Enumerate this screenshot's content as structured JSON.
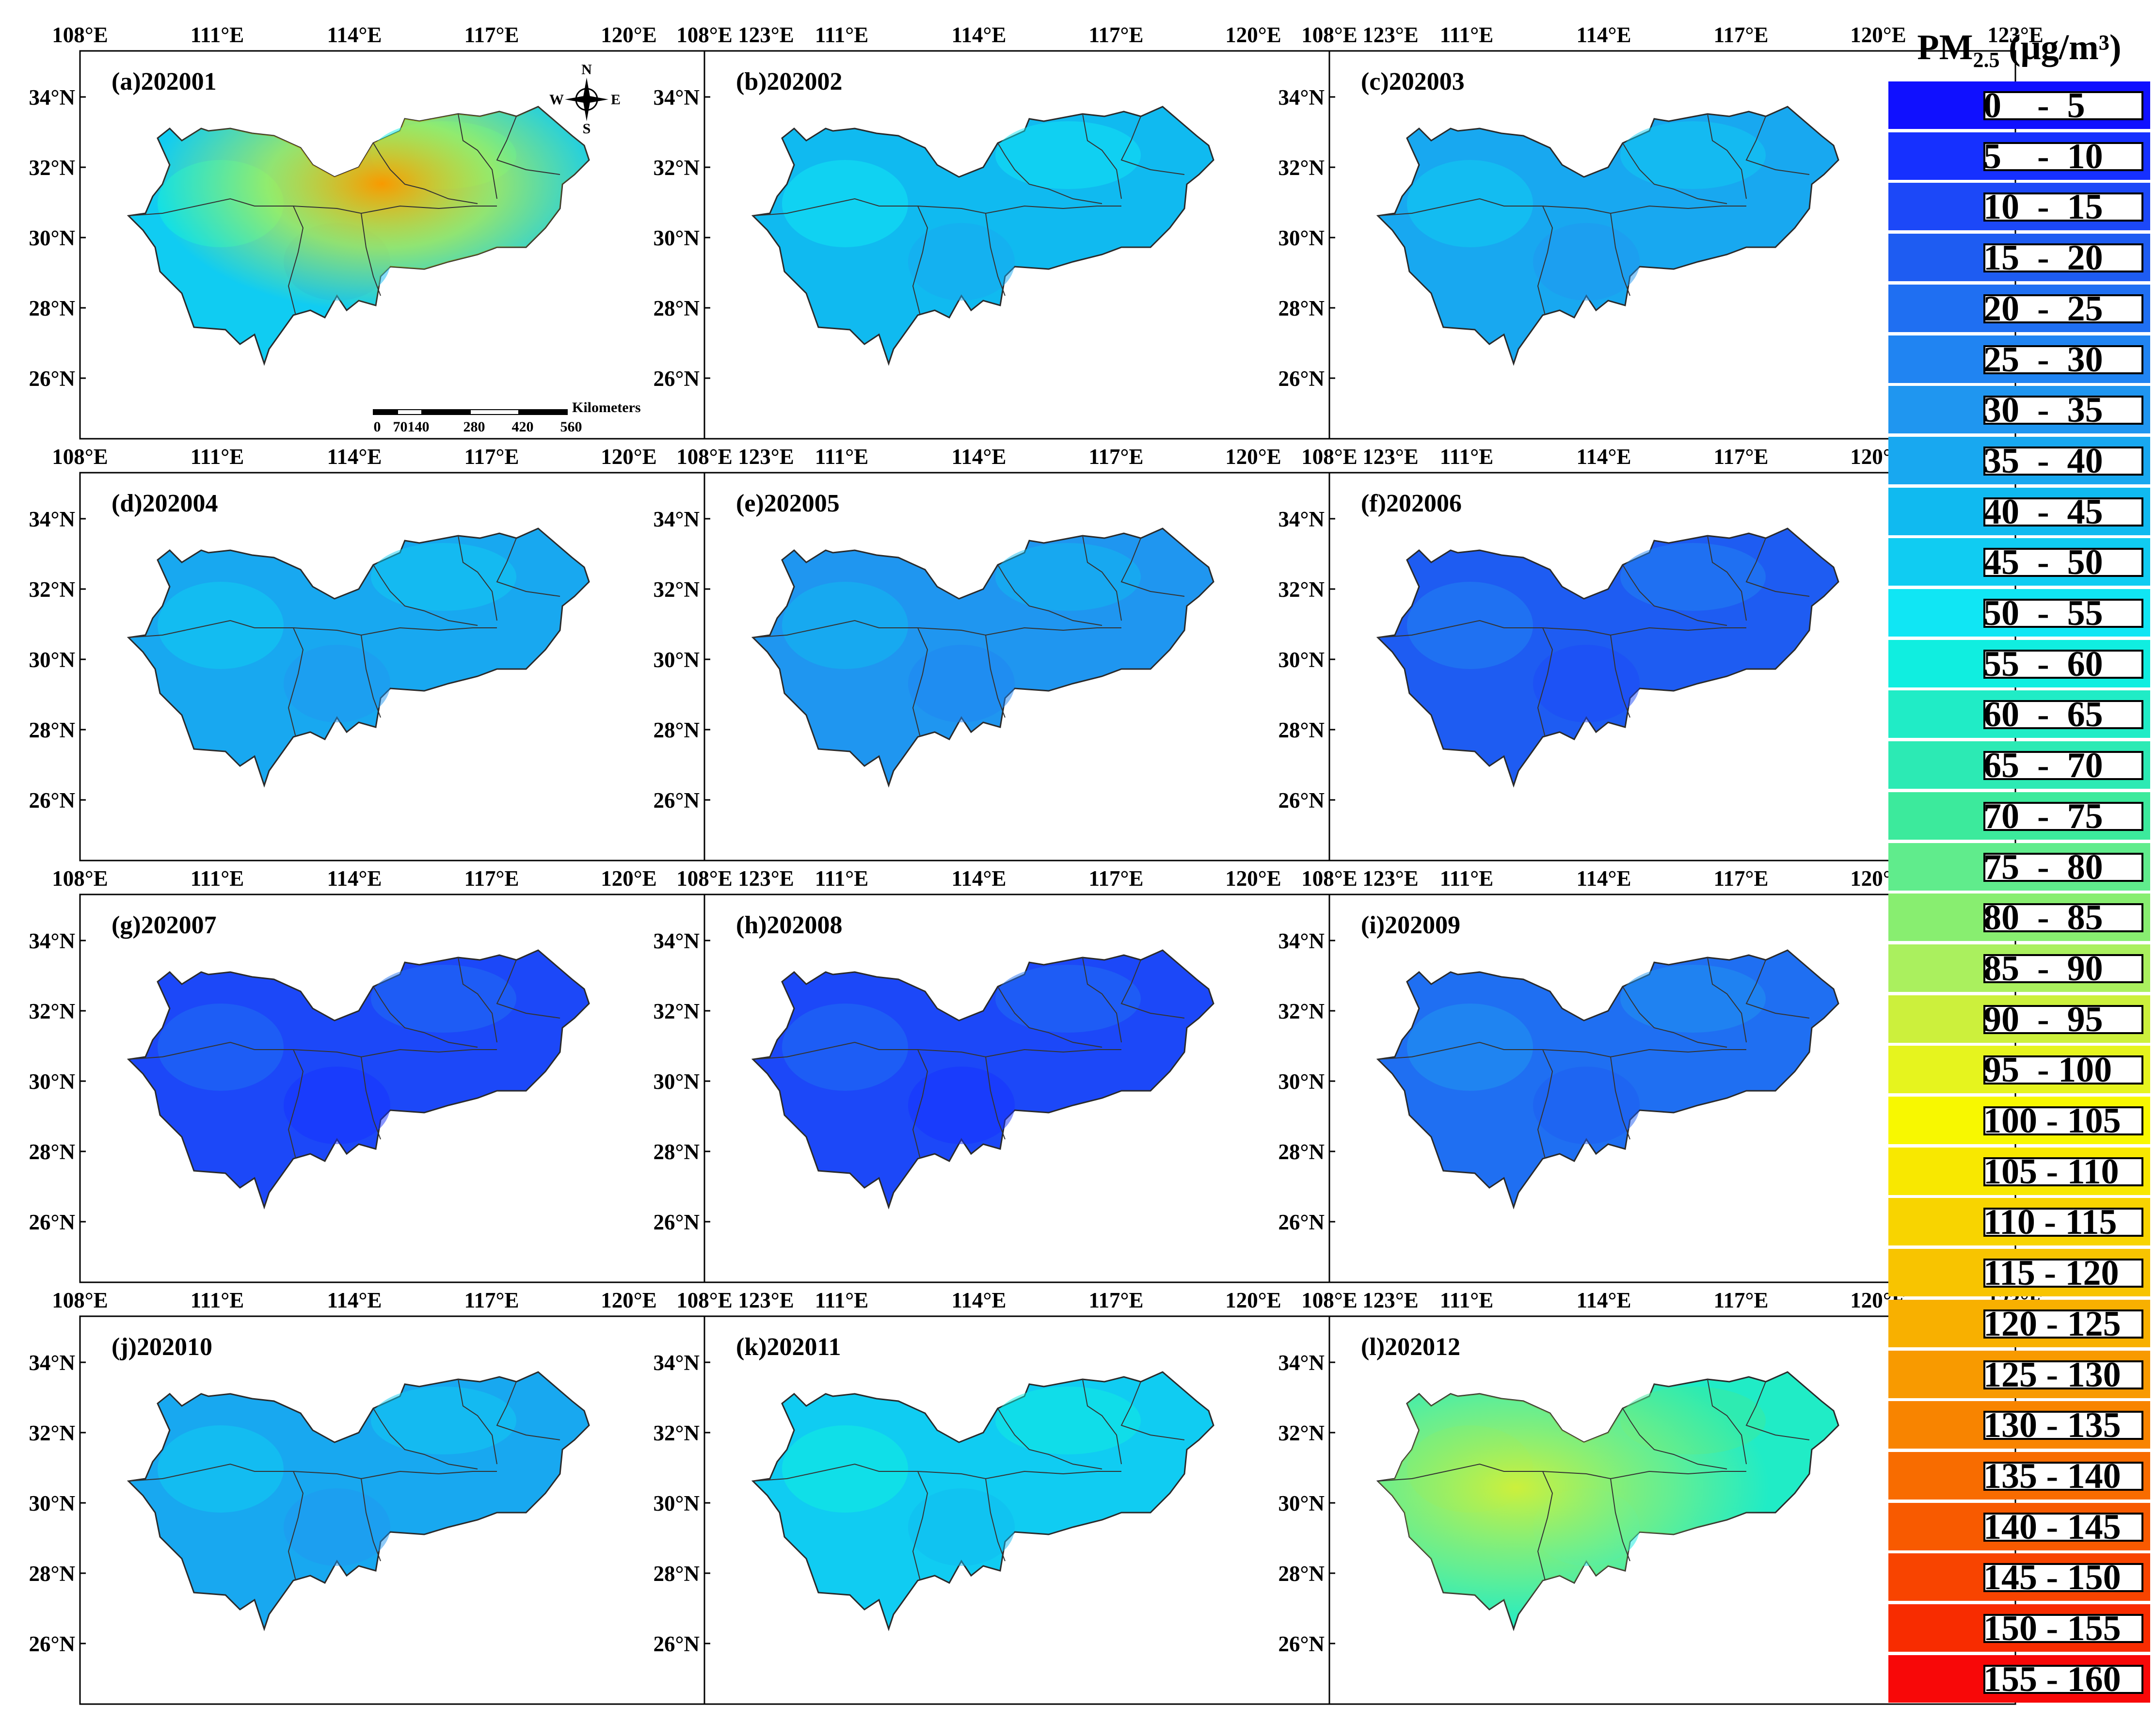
{
  "figure": {
    "lon_ticks": [
      "108°E",
      "111°E",
      "114°E",
      "117°E",
      "120°E",
      "123°E"
    ],
    "lat_ticks": [
      "34°N",
      "32°N",
      "30°N",
      "28°N",
      "26°N"
    ],
    "panels": [
      {
        "label": "(a)202001",
        "fill_index": 9,
        "hot": true
      },
      {
        "label": "(b)202002",
        "fill_index": 8,
        "hot": false
      },
      {
        "label": "(c)202003",
        "fill_index": 7,
        "hot": false
      },
      {
        "label": "(d)202004",
        "fill_index": 7,
        "hot": false
      },
      {
        "label": "(e)202005",
        "fill_index": 6,
        "hot": false
      },
      {
        "label": "(f)202006",
        "fill_index": 3,
        "hot": false
      },
      {
        "label": "(g)202007",
        "fill_index": 2,
        "hot": false
      },
      {
        "label": "(h)202008",
        "fill_index": 2,
        "hot": false
      },
      {
        "label": "(i)202009",
        "fill_index": 4,
        "hot": false
      },
      {
        "label": "(j)202010",
        "fill_index": 7,
        "hot": false
      },
      {
        "label": "(k)202011",
        "fill_index": 9,
        "hot": false
      },
      {
        "label": "(l)202012",
        "fill_index": 12,
        "hot": true
      }
    ],
    "north_arrow": {
      "n": "N",
      "s": "S",
      "e": "E",
      "w": "W"
    },
    "scale_bar": {
      "ticks": [
        "0",
        "70140",
        "280",
        "420",
        "560"
      ],
      "unit": "Kilometers"
    }
  },
  "legend": {
    "title_main": "PM",
    "title_sub": "2.5",
    "title_unit": " (μg/m³)",
    "items": [
      {
        "label": "0    -  5",
        "color": "#1010ff"
      },
      {
        "label": "5    -  10",
        "color": "#1630ff"
      },
      {
        "label": "10  -  15",
        "color": "#1c48f8"
      },
      {
        "label": "15  -  20",
        "color": "#1e5cf2"
      },
      {
        "label": "20  -  25",
        "color": "#1f6ff2"
      },
      {
        "label": "25  -  30",
        "color": "#2084f2"
      },
      {
        "label": "30  -  35",
        "color": "#1f96f0"
      },
      {
        "label": "35  -  40",
        "color": "#18a8f0"
      },
      {
        "label": "40  -  45",
        "color": "#10baf0"
      },
      {
        "label": "45  -  50",
        "color": "#10ccf2"
      },
      {
        "label": "50  -  55",
        "color": "#10e6f4"
      },
      {
        "label": "55  -  60",
        "color": "#10eee0"
      },
      {
        "label": "60  -  65",
        "color": "#20ecc6"
      },
      {
        "label": "65  -  70",
        "color": "#2ceab4"
      },
      {
        "label": "70  -  75",
        "color": "#3cea9c"
      },
      {
        "label": "75  -  80",
        "color": "#60ec8c"
      },
      {
        "label": "80  -  85",
        "color": "#88ee70"
      },
      {
        "label": "85  -  90",
        "color": "#aaf05e"
      },
      {
        "label": "90  -  95",
        "color": "#ccf03c"
      },
      {
        "label": "95  - 100",
        "color": "#e6f41e"
      },
      {
        "label": "100 - 105",
        "color": "#f8f800"
      },
      {
        "label": "105 - 110",
        "color": "#f8e800"
      },
      {
        "label": "110 - 115",
        "color": "#f8d400"
      },
      {
        "label": "115 - 120",
        "color": "#f8c400"
      },
      {
        "label": "120 - 125",
        "color": "#f8b000"
      },
      {
        "label": "125 - 130",
        "color": "#f89a00"
      },
      {
        "label": "130 - 135",
        "color": "#f88400"
      },
      {
        "label": "135 - 140",
        "color": "#f86c00"
      },
      {
        "label": "140 - 145",
        "color": "#f85a00"
      },
      {
        "label": "145 - 150",
        "color": "#f84400"
      },
      {
        "label": "150 - 155",
        "color": "#f82c00"
      },
      {
        "label": "155 - 160",
        "color": "#f80808"
      }
    ]
  }
}
